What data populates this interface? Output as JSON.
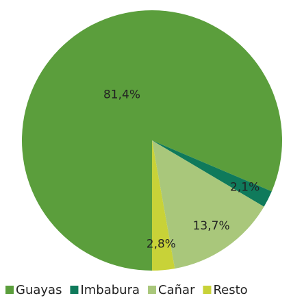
{
  "chart_data": {
    "type": "pie",
    "categories": [
      "Guayas",
      "Imbabura",
      "Cañar",
      "Resto"
    ],
    "values": [
      81.4,
      2.1,
      13.7,
      2.8
    ],
    "value_labels": [
      "81,4%",
      "2,1%",
      "13,7%",
      "2,8%"
    ],
    "colors": [
      "#5b9e3c",
      "#0f7a5b",
      "#a9c77b",
      "#c8d238"
    ],
    "legend": "bottom"
  }
}
